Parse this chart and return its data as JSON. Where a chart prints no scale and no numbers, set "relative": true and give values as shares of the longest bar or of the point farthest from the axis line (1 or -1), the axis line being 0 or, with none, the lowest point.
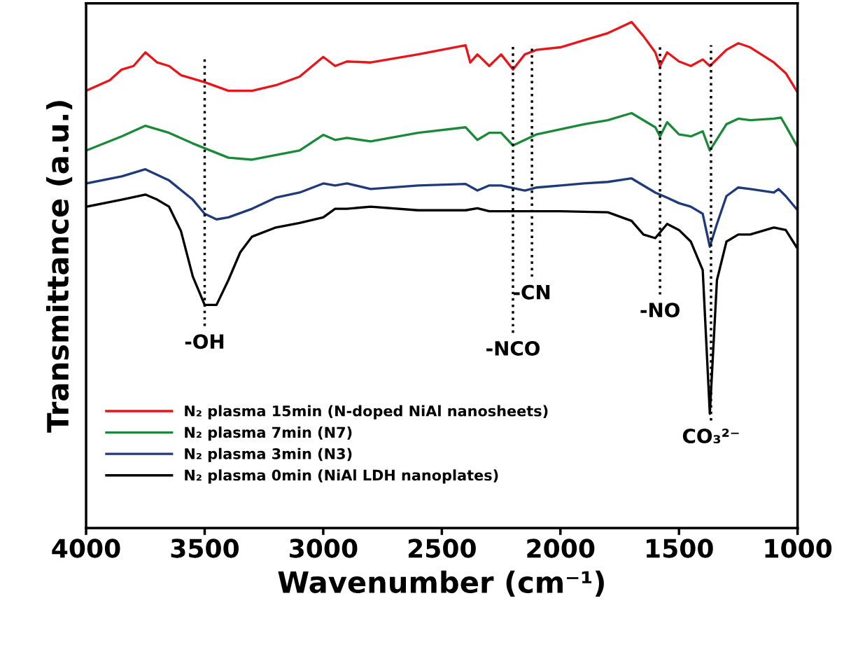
{
  "chart_data": {
    "type": "line",
    "relative": true,
    "xlabel": "Wavenumber (cm⁻¹)",
    "ylabel": "Transmittance (a.u.)",
    "xlim": [
      4000,
      1000
    ],
    "xticks": [
      4000,
      3500,
      3000,
      2500,
      2000,
      1500,
      1000
    ],
    "tick_labels": "x",
    "grid": false,
    "legend": "bottom left",
    "marker": "none",
    "line_style": "solid",
    "series": [
      {
        "name": "N₂ plasma 15min (N-doped NiAl nanosheets)",
        "color": "#e8151b",
        "x": [
          4000,
          3900,
          3850,
          3800,
          3750,
          3700,
          3650,
          3600,
          3500,
          3400,
          3300,
          3200,
          3100,
          3000,
          2950,
          2900,
          2800,
          2600,
          2400,
          2380,
          2350,
          2300,
          2250,
          2200,
          2150,
          2100,
          2000,
          1900,
          1800,
          1700,
          1650,
          1600,
          1580,
          1550,
          1500,
          1450,
          1400,
          1370,
          1300,
          1250,
          1200,
          1100,
          1050,
          1000
        ],
        "values": [
          0.864,
          0.885,
          0.906,
          0.913,
          0.94,
          0.92,
          0.913,
          0.895,
          0.881,
          0.864,
          0.864,
          0.875,
          0.892,
          0.931,
          0.913,
          0.922,
          0.92,
          0.936,
          0.954,
          0.92,
          0.936,
          0.913,
          0.936,
          0.906,
          0.936,
          0.945,
          0.95,
          0.964,
          0.978,
          1.0,
          0.972,
          0.94,
          0.913,
          0.94,
          0.922,
          0.913,
          0.926,
          0.913,
          0.945,
          0.958,
          0.95,
          0.92,
          0.899,
          0.861
        ]
      },
      {
        "name": "N₂ plasma 7min (N7)",
        "color": "#1a8a3a",
        "x": [
          4000,
          3850,
          3750,
          3650,
          3550,
          3400,
          3300,
          3100,
          3000,
          2950,
          2900,
          2800,
          2600,
          2400,
          2350,
          2300,
          2250,
          2200,
          2100,
          2000,
          1900,
          1800,
          1700,
          1600,
          1580,
          1550,
          1500,
          1450,
          1400,
          1370,
          1300,
          1250,
          1200,
          1100,
          1070,
          1050,
          1000
        ],
        "values": [
          0.746,
          0.774,
          0.795,
          0.781,
          0.76,
          0.732,
          0.728,
          0.746,
          0.777,
          0.767,
          0.771,
          0.764,
          0.781,
          0.792,
          0.767,
          0.781,
          0.781,
          0.756,
          0.778,
          0.788,
          0.798,
          0.806,
          0.82,
          0.792,
          0.774,
          0.802,
          0.778,
          0.774,
          0.784,
          0.746,
          0.798,
          0.809,
          0.806,
          0.809,
          0.811,
          0.795,
          0.753
        ]
      },
      {
        "name": "N₂ plasma 3min (N3)",
        "color": "#1f3a7a",
        "x": [
          4000,
          3850,
          3750,
          3650,
          3550,
          3500,
          3450,
          3400,
          3300,
          3200,
          3100,
          3000,
          2950,
          2900,
          2800,
          2600,
          2400,
          2350,
          2300,
          2250,
          2150,
          2100,
          2000,
          1900,
          1800,
          1700,
          1600,
          1550,
          1500,
          1450,
          1400,
          1370,
          1340,
          1300,
          1250,
          1200,
          1100,
          1080,
          1050,
          1000
        ],
        "values": [
          0.681,
          0.695,
          0.709,
          0.687,
          0.649,
          0.621,
          0.61,
          0.614,
          0.631,
          0.653,
          0.663,
          0.681,
          0.677,
          0.681,
          0.67,
          0.677,
          0.68,
          0.667,
          0.677,
          0.677,
          0.667,
          0.673,
          0.677,
          0.681,
          0.684,
          0.691,
          0.663,
          0.653,
          0.642,
          0.635,
          0.621,
          0.556,
          0.601,
          0.656,
          0.673,
          0.67,
          0.663,
          0.67,
          0.656,
          0.628
        ]
      },
      {
        "name": "N₂ plasma 0min (NiAl LDH nanoplates)",
        "color": "#000000",
        "x": [
          4000,
          3850,
          3750,
          3700,
          3650,
          3600,
          3550,
          3500,
          3450,
          3400,
          3350,
          3300,
          3200,
          3100,
          3000,
          2950,
          2900,
          2800,
          2600,
          2400,
          2350,
          2300,
          2200,
          2000,
          1800,
          1700,
          1650,
          1600,
          1550,
          1500,
          1450,
          1400,
          1370,
          1340,
          1300,
          1250,
          1200,
          1100,
          1050,
          1000
        ],
        "values": [
          0.635,
          0.649,
          0.659,
          0.649,
          0.635,
          0.587,
          0.497,
          0.441,
          0.441,
          0.49,
          0.545,
          0.576,
          0.594,
          0.603,
          0.614,
          0.631,
          0.631,
          0.635,
          0.628,
          0.628,
          0.632,
          0.626,
          0.626,
          0.626,
          0.624,
          0.607,
          0.58,
          0.573,
          0.601,
          0.589,
          0.566,
          0.51,
          0.226,
          0.49,
          0.566,
          0.58,
          0.58,
          0.594,
          0.589,
          0.552
        ]
      }
    ],
    "ref_lines": [
      {
        "axis": "x",
        "value": 3500,
        "label": "-OH",
        "color": "#000000",
        "line_style": "dotted"
      },
      {
        "axis": "x",
        "value": 2200,
        "label": "-NCO",
        "color": "#000000",
        "line_style": "dotted"
      },
      {
        "axis": "x",
        "value": 2120,
        "label": "-CN",
        "color": "#000000",
        "line_style": "dotted"
      },
      {
        "axis": "x",
        "value": 1580,
        "label": "-NO",
        "color": "#000000",
        "line_style": "dotted"
      },
      {
        "axis": "x",
        "value": 1365,
        "label": "CO₃²⁻",
        "color": "#000000",
        "line_style": "dotted"
      }
    ]
  }
}
